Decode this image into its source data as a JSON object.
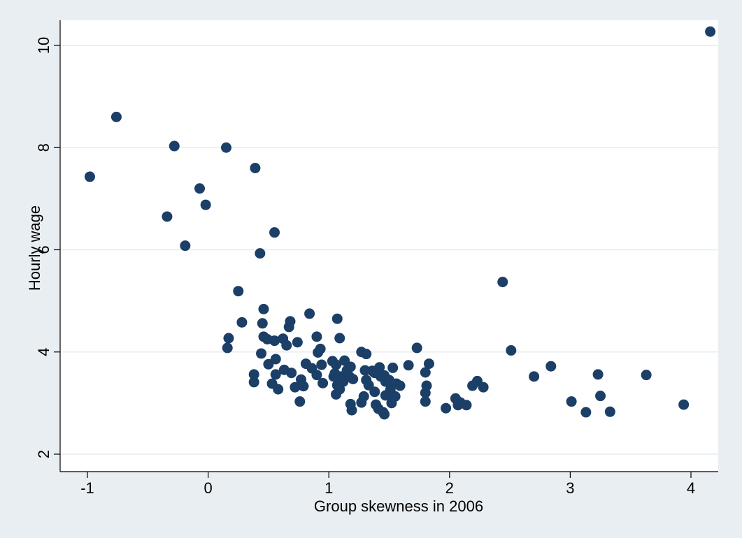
{
  "chart_data": {
    "type": "scatter",
    "title": "",
    "xlabel": "Group skewness in 2006",
    "ylabel": "Hourly wage",
    "xlim": [
      -1,
      4.2
    ],
    "ylim": [
      1.8,
      10.45
    ],
    "xticks": [
      -1,
      0,
      1,
      2,
      3,
      4
    ],
    "yticks": [
      2,
      4,
      6,
      8,
      10
    ],
    "grid": true,
    "marker_color": "#1b3f66",
    "points": [
      {
        "x": -0.98,
        "y": 7.43
      },
      {
        "x": -0.76,
        "y": 8.6
      },
      {
        "x": -0.34,
        "y": 6.65
      },
      {
        "x": -0.28,
        "y": 8.03
      },
      {
        "x": -0.19,
        "y": 6.08
      },
      {
        "x": -0.07,
        "y": 7.2
      },
      {
        "x": -0.02,
        "y": 6.88
      },
      {
        "x": 0.15,
        "y": 8.0
      },
      {
        "x": 0.39,
        "y": 7.6
      },
      {
        "x": 0.55,
        "y": 6.34
      },
      {
        "x": 0.43,
        "y": 5.93
      },
      {
        "x": 0.25,
        "y": 5.19
      },
      {
        "x": 0.28,
        "y": 4.58
      },
      {
        "x": 0.17,
        "y": 4.27
      },
      {
        "x": 0.16,
        "y": 4.08
      },
      {
        "x": 0.38,
        "y": 3.56
      },
      {
        "x": 0.38,
        "y": 3.41
      },
      {
        "x": 0.46,
        "y": 4.84
      },
      {
        "x": 0.45,
        "y": 4.56
      },
      {
        "x": 0.46,
        "y": 4.3
      },
      {
        "x": 0.49,
        "y": 4.25
      },
      {
        "x": 0.44,
        "y": 3.97
      },
      {
        "x": 0.55,
        "y": 4.22
      },
      {
        "x": 0.62,
        "y": 4.26
      },
      {
        "x": 0.67,
        "y": 4.49
      },
      {
        "x": 0.68,
        "y": 4.6
      },
      {
        "x": 0.65,
        "y": 4.13
      },
      {
        "x": 0.74,
        "y": 4.19
      },
      {
        "x": 0.56,
        "y": 3.86
      },
      {
        "x": 0.5,
        "y": 3.76
      },
      {
        "x": 0.63,
        "y": 3.65
      },
      {
        "x": 0.69,
        "y": 3.59
      },
      {
        "x": 0.56,
        "y": 3.56
      },
      {
        "x": 0.53,
        "y": 3.38
      },
      {
        "x": 0.58,
        "y": 3.27
      },
      {
        "x": 0.72,
        "y": 3.31
      },
      {
        "x": 0.77,
        "y": 3.46
      },
      {
        "x": 0.79,
        "y": 3.33
      },
      {
        "x": 0.76,
        "y": 3.03
      },
      {
        "x": 0.84,
        "y": 4.75
      },
      {
        "x": 0.9,
        "y": 4.3
      },
      {
        "x": 0.91,
        "y": 3.99
      },
      {
        "x": 0.93,
        "y": 4.06
      },
      {
        "x": 0.81,
        "y": 3.77
      },
      {
        "x": 0.86,
        "y": 3.68
      },
      {
        "x": 0.9,
        "y": 3.55
      },
      {
        "x": 0.95,
        "y": 3.39
      },
      {
        "x": 0.94,
        "y": 3.75
      },
      {
        "x": 1.03,
        "y": 3.82
      },
      {
        "x": 1.06,
        "y": 3.75
      },
      {
        "x": 1.04,
        "y": 3.52
      },
      {
        "x": 1.05,
        "y": 3.58
      },
      {
        "x": 1.07,
        "y": 4.65
      },
      {
        "x": 1.09,
        "y": 4.27
      },
      {
        "x": 1.1,
        "y": 3.52
      },
      {
        "x": 1.07,
        "y": 3.35
      },
      {
        "x": 1.06,
        "y": 3.17
      },
      {
        "x": 1.09,
        "y": 3.27
      },
      {
        "x": 1.13,
        "y": 3.83
      },
      {
        "x": 1.15,
        "y": 3.64
      },
      {
        "x": 1.12,
        "y": 3.42
      },
      {
        "x": 1.18,
        "y": 3.71
      },
      {
        "x": 1.17,
        "y": 3.52
      },
      {
        "x": 1.2,
        "y": 3.47
      },
      {
        "x": 1.18,
        "y": 2.98
      },
      {
        "x": 1.19,
        "y": 2.86
      },
      {
        "x": 1.27,
        "y": 4.0
      },
      {
        "x": 1.31,
        "y": 3.96
      },
      {
        "x": 1.3,
        "y": 3.64
      },
      {
        "x": 1.31,
        "y": 3.45
      },
      {
        "x": 1.33,
        "y": 3.35
      },
      {
        "x": 1.29,
        "y": 3.13
      },
      {
        "x": 1.27,
        "y": 3.01
      },
      {
        "x": 1.36,
        "y": 3.63
      },
      {
        "x": 1.38,
        "y": 3.59
      },
      {
        "x": 1.38,
        "y": 3.22
      },
      {
        "x": 1.39,
        "y": 2.97
      },
      {
        "x": 1.42,
        "y": 3.7
      },
      {
        "x": 1.43,
        "y": 3.52
      },
      {
        "x": 1.41,
        "y": 2.89
      },
      {
        "x": 1.46,
        "y": 3.54
      },
      {
        "x": 1.47,
        "y": 3.42
      },
      {
        "x": 1.47,
        "y": 3.15
      },
      {
        "x": 1.45,
        "y": 2.82
      },
      {
        "x": 1.46,
        "y": 2.78
      },
      {
        "x": 1.5,
        "y": 3.45
      },
      {
        "x": 1.51,
        "y": 3.26
      },
      {
        "x": 1.53,
        "y": 3.69
      },
      {
        "x": 1.52,
        "y": 3.0
      },
      {
        "x": 1.55,
        "y": 3.13
      },
      {
        "x": 1.56,
        "y": 3.38
      },
      {
        "x": 1.59,
        "y": 3.34
      },
      {
        "x": 1.66,
        "y": 3.74
      },
      {
        "x": 1.73,
        "y": 4.08
      },
      {
        "x": 1.8,
        "y": 3.6
      },
      {
        "x": 1.81,
        "y": 3.34
      },
      {
        "x": 1.8,
        "y": 3.2
      },
      {
        "x": 1.8,
        "y": 3.03
      },
      {
        "x": 1.83,
        "y": 3.77
      },
      {
        "x": 1.97,
        "y": 2.9
      },
      {
        "x": 2.05,
        "y": 3.09
      },
      {
        "x": 2.07,
        "y": 2.96
      },
      {
        "x": 2.09,
        "y": 3.01
      },
      {
        "x": 2.14,
        "y": 2.96
      },
      {
        "x": 2.19,
        "y": 3.34
      },
      {
        "x": 2.23,
        "y": 3.43
      },
      {
        "x": 2.28,
        "y": 3.31
      },
      {
        "x": 2.44,
        "y": 5.37
      },
      {
        "x": 2.51,
        "y": 4.03
      },
      {
        "x": 2.7,
        "y": 3.52
      },
      {
        "x": 2.84,
        "y": 3.72
      },
      {
        "x": 3.01,
        "y": 3.03
      },
      {
        "x": 3.13,
        "y": 2.82
      },
      {
        "x": 3.23,
        "y": 3.56
      },
      {
        "x": 3.25,
        "y": 3.14
      },
      {
        "x": 3.33,
        "y": 2.83
      },
      {
        "x": 3.63,
        "y": 3.55
      },
      {
        "x": 3.94,
        "y": 2.97
      },
      {
        "x": 4.16,
        "y": 10.27
      }
    ]
  }
}
